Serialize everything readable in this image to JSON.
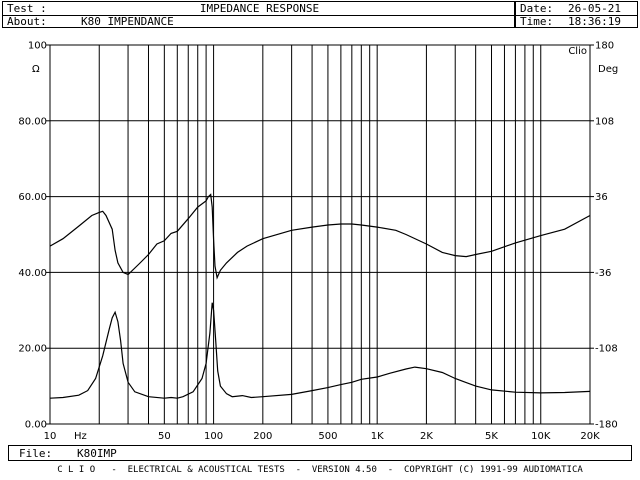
{
  "header": {
    "test_label": "Test :",
    "test_value": "IMPEDANCE RESPONSE",
    "about_label": "About:",
    "about_value": "K80 IMPENDANCE",
    "date_label": "Date:",
    "date_value": "26-05-21",
    "time_label": "Time:",
    "time_value": "18:36:19"
  },
  "file": {
    "label": "File:",
    "value": "K80IMP"
  },
  "footer": {
    "text": "C L I O   -  ELECTRICAL & ACOUSTICAL TESTS  -  VERSION 4.50  -  COPYRIGHT (C) 1991-99 AUDIOMATICA"
  },
  "chart_data": {
    "type": "line",
    "logo": "Clio",
    "left_unit": "Ω",
    "right_unit": "Deg",
    "x_unit": "Hz",
    "xlim": [
      10,
      20000
    ],
    "x_scale": "log",
    "y_left_lim": [
      0,
      100
    ],
    "y_right_lim": [
      -180,
      180
    ],
    "y_left_ticks": [
      "0.00",
      "20.00",
      "40.00",
      "60.00",
      "80.00",
      "100"
    ],
    "y_right_ticks": [
      "-180",
      "-108",
      "-36",
      "36",
      "108",
      "180"
    ],
    "x_ticks": [
      {
        "v": 10,
        "l": "10"
      },
      {
        "v": 50,
        "l": "50"
      },
      {
        "v": 100,
        "l": "100"
      },
      {
        "v": 200,
        "l": "200"
      },
      {
        "v": 500,
        "l": "500"
      },
      {
        "v": 1000,
        "l": "1K"
      },
      {
        "v": 2000,
        "l": "2K"
      },
      {
        "v": 5000,
        "l": "5K"
      },
      {
        "v": 10000,
        "l": "10K"
      },
      {
        "v": 20000,
        "l": "20K"
      }
    ],
    "grid": true,
    "series": [
      {
        "axis": "left",
        "color": "#000000",
        "points": [
          [
            10,
            6.8
          ],
          [
            12,
            7.0
          ],
          [
            15,
            7.6
          ],
          [
            17,
            8.8
          ],
          [
            19,
            12
          ],
          [
            21,
            18
          ],
          [
            23,
            25
          ],
          [
            24,
            28
          ],
          [
            25,
            29.5
          ],
          [
            26,
            27
          ],
          [
            27,
            22
          ],
          [
            28,
            16
          ],
          [
            30,
            11
          ],
          [
            33,
            8.5
          ],
          [
            40,
            7.2
          ],
          [
            50,
            6.8
          ],
          [
            55,
            7.0
          ],
          [
            60,
            6.8
          ],
          [
            65,
            7.2
          ],
          [
            75,
            8.5
          ],
          [
            85,
            12
          ],
          [
            90,
            16
          ],
          [
            95,
            24
          ],
          [
            98,
            32
          ],
          [
            100,
            30
          ],
          [
            103,
            22
          ],
          [
            106,
            14
          ],
          [
            110,
            10
          ],
          [
            120,
            8.0
          ],
          [
            130,
            7.2
          ],
          [
            150,
            7.5
          ],
          [
            170,
            7.0
          ],
          [
            200,
            7.2
          ],
          [
            300,
            7.8
          ],
          [
            400,
            8.8
          ],
          [
            500,
            9.6
          ],
          [
            600,
            10.4
          ],
          [
            700,
            11.0
          ],
          [
            800,
            11.8
          ],
          [
            1000,
            12.4
          ],
          [
            1200,
            13.4
          ],
          [
            1500,
            14.5
          ],
          [
            1700,
            15.0
          ],
          [
            2000,
            14.6
          ],
          [
            2500,
            13.6
          ],
          [
            3000,
            12.0
          ],
          [
            4000,
            10.0
          ],
          [
            5000,
            9.0
          ],
          [
            7000,
            8.4
          ],
          [
            10000,
            8.2
          ],
          [
            14000,
            8.3
          ],
          [
            20000,
            8.6
          ]
        ]
      },
      {
        "axis": "right",
        "color": "#000000",
        "points": [
          [
            10,
            -11
          ],
          [
            12,
            -4
          ],
          [
            15,
            8
          ],
          [
            18,
            18
          ],
          [
            20,
            21
          ],
          [
            21,
            22
          ],
          [
            22,
            18
          ],
          [
            24,
            5
          ],
          [
            25,
            -15
          ],
          [
            26,
            -27
          ],
          [
            28,
            -36
          ],
          [
            30,
            -38
          ],
          [
            35,
            -28
          ],
          [
            40,
            -19
          ],
          [
            45,
            -9
          ],
          [
            50,
            -6
          ],
          [
            55,
            1
          ],
          [
            60,
            3
          ],
          [
            70,
            15
          ],
          [
            80,
            26
          ],
          [
            90,
            32
          ],
          [
            93,
            36
          ],
          [
            96,
            38
          ],
          [
            98,
            26
          ],
          [
            100,
            -5
          ],
          [
            102,
            -30
          ],
          [
            105,
            -41
          ],
          [
            110,
            -34
          ],
          [
            120,
            -27
          ],
          [
            140,
            -17
          ],
          [
            160,
            -11
          ],
          [
            200,
            -4
          ],
          [
            300,
            4
          ],
          [
            400,
            7
          ],
          [
            500,
            9
          ],
          [
            600,
            10
          ],
          [
            700,
            10
          ],
          [
            800,
            9
          ],
          [
            1000,
            7
          ],
          [
            1300,
            4
          ],
          [
            1500,
            0
          ],
          [
            2000,
            -9
          ],
          [
            2500,
            -17
          ],
          [
            3000,
            -20
          ],
          [
            3500,
            -21
          ],
          [
            4000,
            -19
          ],
          [
            5000,
            -16
          ],
          [
            7000,
            -8
          ],
          [
            10000,
            -1
          ],
          [
            14000,
            5
          ],
          [
            20000,
            18
          ]
        ]
      }
    ]
  }
}
